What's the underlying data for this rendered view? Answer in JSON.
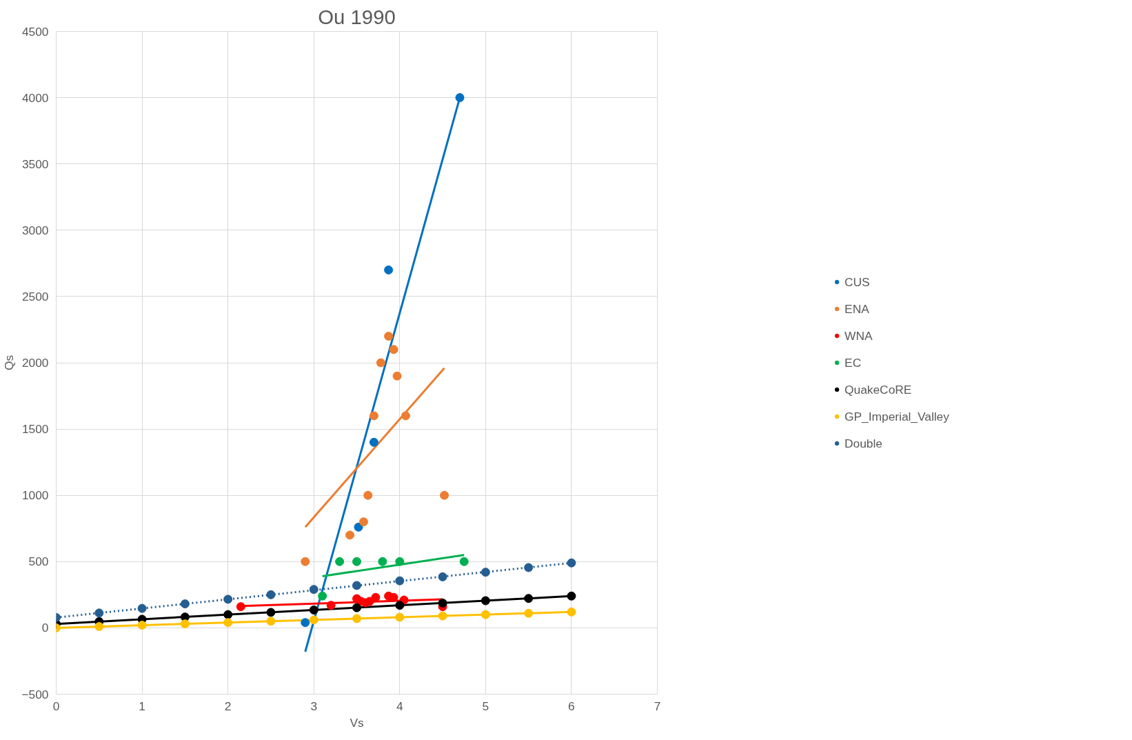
{
  "chart_data": {
    "type": "scatter",
    "title": "Ou 1990",
    "xlabel": "Vs",
    "ylabel": "Qs",
    "xlim": [
      0,
      7
    ],
    "xticks": [
      0,
      1,
      2,
      3,
      4,
      5,
      6,
      7
    ],
    "ylim": [
      -500,
      4500
    ],
    "yticks": [
      -500,
      0,
      500,
      1000,
      1500,
      2000,
      2500,
      3000,
      3500,
      4000,
      4500
    ],
    "grid": true,
    "legend": "right",
    "marker": "circle",
    "series": [
      {
        "name": "CUS",
        "color": "#0070c0",
        "x": [
          2.9,
          3.52,
          3.7,
          3.87,
          4.7
        ],
        "values": [
          40,
          760,
          1400,
          2700,
          4000
        ]
      },
      {
        "name": "ENA",
        "color": "#ed7d31",
        "x": [
          2.9,
          3.42,
          3.58,
          3.63,
          3.7,
          3.78,
          3.87,
          3.93,
          3.97,
          4.07,
          4.52
        ],
        "values": [
          500,
          700,
          800,
          1000,
          1600,
          2000,
          2200,
          2100,
          1900,
          1600,
          1000
        ]
      },
      {
        "name": "WNA",
        "color": "#ff0000",
        "x": [
          2.15,
          3.2,
          3.5,
          3.55,
          3.6,
          3.65,
          3.72,
          3.87,
          3.93,
          4.05,
          4.5
        ],
        "values": [
          160,
          170,
          220,
          200,
          190,
          200,
          230,
          240,
          230,
          210,
          160
        ]
      },
      {
        "name": "EC",
        "color": "#00b050",
        "x": [
          3.1,
          3.3,
          3.5,
          3.8,
          4.0,
          4.75
        ],
        "values": [
          240,
          500,
          500,
          500,
          500,
          500
        ]
      },
      {
        "name": "QuakeCoRE",
        "color": "#000000",
        "x": [
          0,
          0.5,
          1,
          1.5,
          2,
          2.5,
          3,
          3.5,
          4,
          4.5,
          5,
          5.5,
          6
        ],
        "values": [
          30,
          47,
          65,
          82,
          100,
          117,
          135,
          152,
          170,
          187,
          205,
          222,
          240
        ]
      },
      {
        "name": "GP_Imperial_Valley",
        "color": "#ffc000",
        "x": [
          0,
          0.5,
          1,
          1.5,
          2,
          2.5,
          3,
          3.5,
          4,
          4.5,
          5,
          5.5,
          6
        ],
        "values": [
          0,
          10,
          20,
          30,
          40,
          50,
          60,
          70,
          80,
          90,
          100,
          110,
          120
        ]
      },
      {
        "name": "Double",
        "color": "#255e91",
        "x": [
          0,
          0.5,
          1,
          1.5,
          2,
          2.5,
          3,
          3.5,
          4,
          4.5,
          5,
          5.5,
          6
        ],
        "values": [
          78,
          112,
          147,
          181,
          216,
          250,
          290,
          320,
          355,
          385,
          420,
          455,
          490
        ]
      },
      {
        "type": "line",
        "color": "#0070c0",
        "marker": "none",
        "line_style": "solid",
        "x": [
          2.9,
          4.7
        ],
        "values": [
          -180,
          4000
        ]
      },
      {
        "type": "line",
        "color": "#ed7d31",
        "marker": "none",
        "line_style": "solid",
        "x": [
          2.9,
          4.52
        ],
        "values": [
          760,
          1960
        ]
      },
      {
        "type": "line",
        "color": "#ff0000",
        "marker": "none",
        "line_style": "solid",
        "x": [
          2.15,
          4.5
        ],
        "values": [
          165,
          215
        ]
      },
      {
        "type": "line",
        "color": "#00b050",
        "marker": "none",
        "line_style": "solid",
        "x": [
          3.1,
          4.75
        ],
        "values": [
          390,
          550
        ]
      },
      {
        "type": "line",
        "color": "#000000",
        "marker": "none",
        "line_style": "solid",
        "x": [
          0,
          6
        ],
        "values": [
          30,
          240
        ]
      },
      {
        "type": "line",
        "color": "#ffc000",
        "marker": "none",
        "line_style": "solid",
        "x": [
          0,
          6
        ],
        "values": [
          0,
          120
        ]
      },
      {
        "type": "line",
        "color": "#255e91",
        "marker": "none",
        "line_style": "dotted",
        "x": [
          0,
          6
        ],
        "values": [
          78,
          490
        ]
      }
    ]
  }
}
